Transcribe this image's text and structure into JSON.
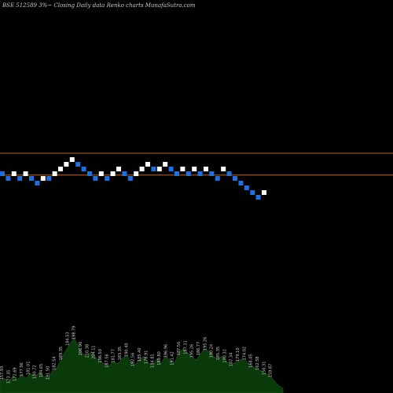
{
  "title": "BSE 512589 3%~  Closing Daily data  Renko  charts MunafaSutra.com",
  "colors": {
    "background": "#000000",
    "up_brick": "#ffffff",
    "down_brick": "#1e6fe0",
    "line": "#b06b22",
    "volume_fill": "#0a3a0a",
    "label": "#c8c8c8"
  },
  "chart_data": {
    "type": "renko",
    "bricks": [
      {
        "dir": "down",
        "level": 0
      },
      {
        "dir": "down",
        "level": -1
      },
      {
        "dir": "up",
        "level": 0
      },
      {
        "dir": "down",
        "level": -1
      },
      {
        "dir": "up",
        "level": 0
      },
      {
        "dir": "down",
        "level": -1
      },
      {
        "dir": "down",
        "level": -2
      },
      {
        "dir": "up",
        "level": -1
      },
      {
        "dir": "down",
        "level": -1
      },
      {
        "dir": "up",
        "level": 0
      },
      {
        "dir": "up",
        "level": 1
      },
      {
        "dir": "up",
        "level": 2
      },
      {
        "dir": "up",
        "level": 3
      },
      {
        "dir": "down",
        "level": 2
      },
      {
        "dir": "down",
        "level": 1
      },
      {
        "dir": "down",
        "level": 0
      },
      {
        "dir": "down",
        "level": -1
      },
      {
        "dir": "up",
        "level": 0
      },
      {
        "dir": "down",
        "level": -1
      },
      {
        "dir": "up",
        "level": 0
      },
      {
        "dir": "up",
        "level": 1
      },
      {
        "dir": "down",
        "level": 0
      },
      {
        "dir": "down",
        "level": -1
      },
      {
        "dir": "up",
        "level": 0
      },
      {
        "dir": "up",
        "level": 1
      },
      {
        "dir": "up",
        "level": 2
      },
      {
        "dir": "down",
        "level": 1
      },
      {
        "dir": "up",
        "level": 1
      },
      {
        "dir": "up",
        "level": 2
      },
      {
        "dir": "down",
        "level": 1
      },
      {
        "dir": "down",
        "level": 0
      },
      {
        "dir": "up",
        "level": 1
      },
      {
        "dir": "down",
        "level": 0
      },
      {
        "dir": "up",
        "level": 1
      },
      {
        "dir": "down",
        "level": 0
      },
      {
        "dir": "up",
        "level": 1
      },
      {
        "dir": "down",
        "level": 0
      },
      {
        "dir": "down",
        "level": -1
      },
      {
        "dir": "up",
        "level": 1
      },
      {
        "dir": "down",
        "level": 0
      },
      {
        "dir": "down",
        "level": -1
      },
      {
        "dir": "down",
        "level": -2
      },
      {
        "dir": "down",
        "level": -3
      },
      {
        "dir": "down",
        "level": -4
      },
      {
        "dir": "down",
        "level": -5
      },
      {
        "dir": "up",
        "level": -4
      }
    ],
    "resistance_level": 4,
    "support_level": -0.3,
    "volume": [
      10,
      12,
      9,
      14,
      11,
      15,
      12,
      16,
      13,
      17,
      14,
      12,
      18,
      20,
      28,
      34,
      40,
      45,
      38,
      32,
      30,
      34,
      29,
      26,
      24,
      22,
      26,
      24,
      28,
      31,
      26,
      23,
      27,
      30,
      25,
      22,
      28,
      24,
      30,
      27,
      24,
      32,
      36,
      33,
      30,
      27,
      32,
      36,
      34,
      30,
      28,
      30,
      26,
      23,
      25,
      27,
      28,
      24,
      22,
      20,
      18,
      16,
      14,
      10,
      6,
      4
    ],
    "volume_labels": [
      "157.93",
      "173.35",
      "172.69",
      "177.96",
      "181.01",
      "180.72",
      "184.65",
      "191.50",
      "182.54",
      "189.35",
      "184.53",
      "198.79",
      "206.90",
      "210.38",
      "204.11",
      "196.50",
      "187.56",
      "181.77",
      "183.35",
      "190.40",
      "192.56",
      "185.40",
      "178.91",
      "184.81",
      "189.80",
      "196.96",
      "191.42",
      "187.56",
      "197.31",
      "195.26",
      "186.77",
      "195.26",
      "190.24",
      "185.35",
      "190.32",
      "187.34",
      "179.10",
      "174.02",
      "168.05",
      "162.58",
      "156.31",
      "159.87"
    ]
  }
}
